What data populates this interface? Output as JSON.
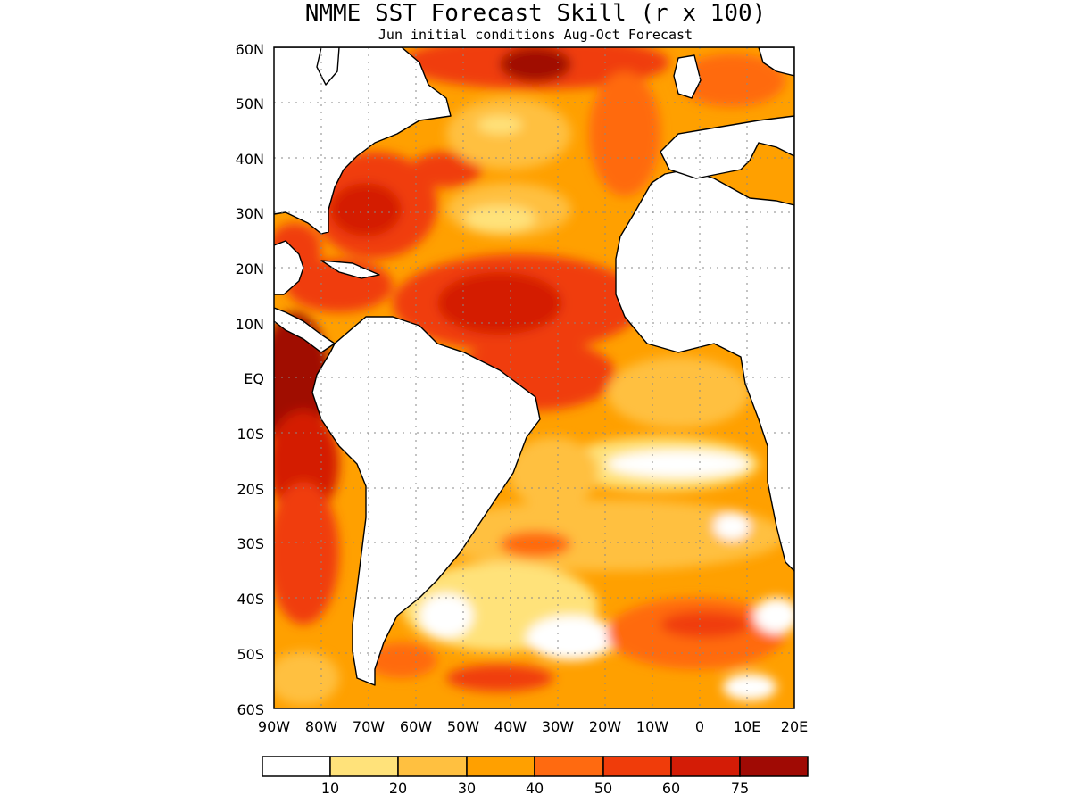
{
  "title": "NMME SST Forecast Skill (r x 100)",
  "subtitle": "Jun initial conditions  Aug-Oct Forecast",
  "lat_ticks": [
    "60N",
    "50N",
    "40N",
    "30N",
    "20N",
    "10N",
    "EQ",
    "10S",
    "20S",
    "30S",
    "40S",
    "50S",
    "60S"
  ],
  "lon_ticks": [
    "90W",
    "80W",
    "70W",
    "60W",
    "50W",
    "40W",
    "30W",
    "20W",
    "10W",
    "0",
    "10E",
    "20E"
  ],
  "map_extent": {
    "lon": [
      -90,
      20
    ],
    "lat": [
      -60,
      60
    ]
  },
  "colorbar": {
    "labels": [
      "10",
      "20",
      "30",
      "40",
      "50",
      "60",
      "75"
    ],
    "bins": [
      {
        "range": "<10",
        "color": "#ffffff"
      },
      {
        "range": "10-20",
        "color": "#ffe27a"
      },
      {
        "range": "20-30",
        "color": "#ffc040"
      },
      {
        "range": "30-40",
        "color": "#ffa000"
      },
      {
        "range": "40-50",
        "color": "#ff6a10"
      },
      {
        "range": "50-60",
        "color": "#f03c0a"
      },
      {
        "range": "60-75",
        "color": "#d41c06"
      },
      {
        "range": ">75",
        "color": "#a00a04"
      }
    ]
  }
}
